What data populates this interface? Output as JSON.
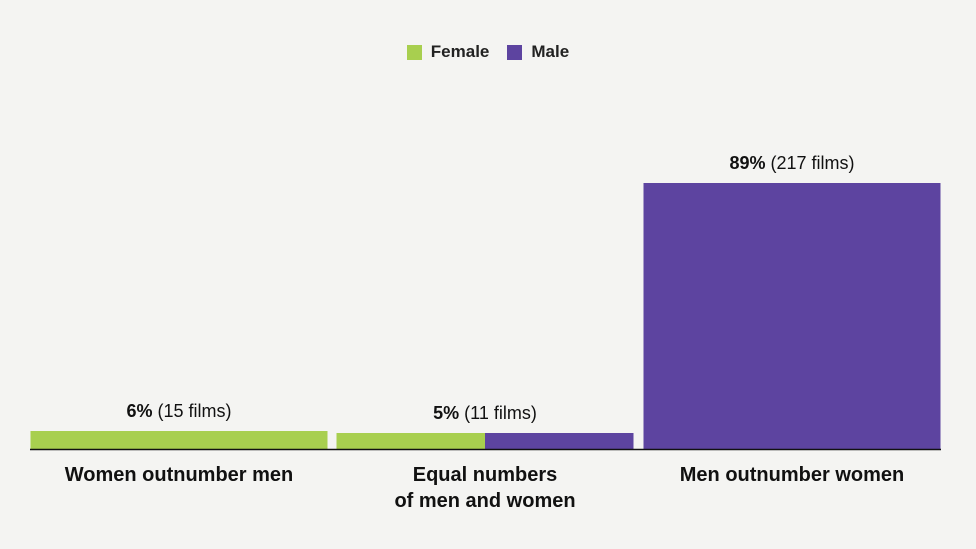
{
  "chart_data": {
    "type": "bar",
    "stacked": true,
    "legend_position": "top-center",
    "colors": {
      "Female": "#a8cf4f",
      "Male": "#5d44a0"
    },
    "categories": [
      "Women outnumber men",
      "Equal numbers of men and women",
      "Men outnumber women"
    ],
    "category_label_lines": [
      [
        "Women outnumber men"
      ],
      [
        "Equal numbers",
        "of men and women"
      ],
      [
        "Men outnumber women"
      ]
    ],
    "series": [
      {
        "name": "Female",
        "values": [
          6,
          2.5,
          0
        ]
      },
      {
        "name": "Male",
        "values": [
          0,
          2.5,
          89
        ]
      }
    ],
    "totals_percent": [
      6,
      5,
      89
    ],
    "films": [
      15,
      11,
      217
    ],
    "data_labels": [
      {
        "pct": "6%",
        "films": "(15 films)"
      },
      {
        "pct": "5%",
        "films": "(11 films)"
      },
      {
        "pct": "89%",
        "films": "(217 films)"
      }
    ],
    "ylim": [
      0,
      89
    ],
    "grid": false
  },
  "legend": [
    {
      "label": "Female",
      "color": "#a8cf4f"
    },
    {
      "label": "Male",
      "color": "#5d44a0"
    }
  ]
}
